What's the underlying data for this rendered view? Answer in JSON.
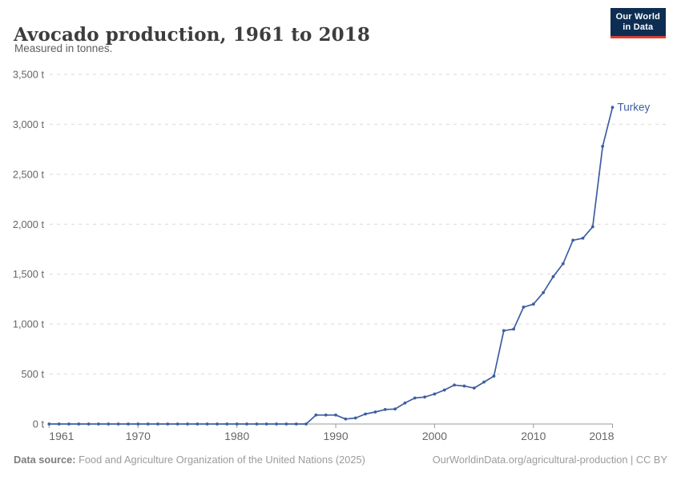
{
  "header": {
    "title": "Avocado production, 1961 to 2018",
    "subtitle": "Measured in tonnes.",
    "logo": {
      "line1": "Our World",
      "line2": "in Data",
      "bg": "#0d2e52",
      "bar_color": "#dc3e32"
    }
  },
  "footer": {
    "source_label": "Data source:",
    "source_text": " Food and Agriculture Organization of the United Nations (2025)",
    "attribution": "OurWorldinData.org/agricultural-production | CC BY"
  },
  "chart_data": {
    "type": "line",
    "title": "Avocado production, 1961 to 2018",
    "subtitle": "Measured in tonnes.",
    "xlabel": "",
    "ylabel": "tonnes",
    "xlim": [
      1961,
      2018
    ],
    "ylim": [
      0,
      3500
    ],
    "grid": "horizontal-dashed",
    "legend": "end-of-line-label",
    "x_ticks": [
      1961,
      1970,
      1980,
      1990,
      2000,
      2010,
      2018
    ],
    "y_ticks": [
      0,
      500,
      1000,
      1500,
      2000,
      2500,
      3000,
      3500
    ],
    "y_tick_labels": [
      "0 t",
      "500 t",
      "1,000 t",
      "1,500 t",
      "2,000 t",
      "2,500 t",
      "3,000 t",
      "3,500 t"
    ],
    "colors": {
      "line": "#3c5f9f",
      "gridline": "#d9d9d9",
      "axis": "#999999",
      "tick_text": "#666666"
    },
    "series": [
      {
        "name": "Turkey",
        "color": "#3c5f9f",
        "x": [
          1961,
          1962,
          1963,
          1964,
          1965,
          1966,
          1967,
          1968,
          1969,
          1970,
          1971,
          1972,
          1973,
          1974,
          1975,
          1976,
          1977,
          1978,
          1979,
          1980,
          1981,
          1982,
          1983,
          1984,
          1985,
          1986,
          1987,
          1988,
          1989,
          1990,
          1991,
          1992,
          1993,
          1994,
          1995,
          1996,
          1997,
          1998,
          1999,
          2000,
          2001,
          2002,
          2003,
          2004,
          2005,
          2006,
          2007,
          2008,
          2009,
          2010,
          2011,
          2012,
          2013,
          2014,
          2015,
          2016,
          2017,
          2018
        ],
        "values": [
          0,
          0,
          0,
          0,
          0,
          0,
          0,
          0,
          0,
          0,
          0,
          0,
          0,
          0,
          0,
          0,
          0,
          0,
          0,
          0,
          0,
          0,
          0,
          0,
          0,
          0,
          0,
          90,
          90,
          90,
          50,
          60,
          100,
          120,
          145,
          150,
          210,
          260,
          270,
          300,
          340,
          390,
          380,
          360,
          420,
          480,
          935,
          950,
          1170,
          1200,
          1315,
          1475,
          1605,
          1840,
          1860,
          1975,
          2780,
          3170
        ]
      }
    ]
  }
}
